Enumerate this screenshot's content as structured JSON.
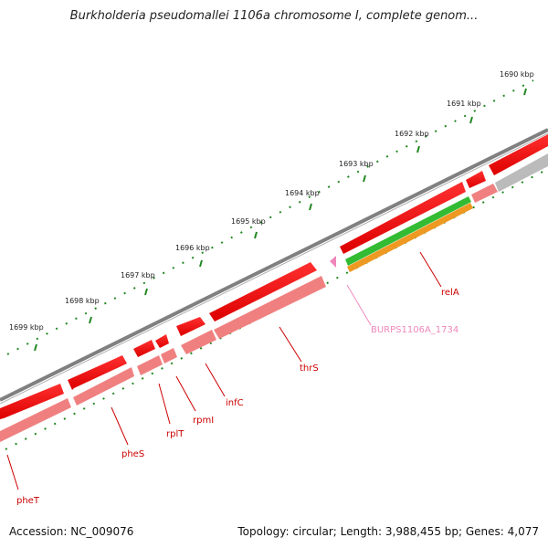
{
  "title": "Burkholderia pseudomallei 1106a chromosome I, complete genom...",
  "accession": "Accession: NC_009076",
  "topology": "Topology: circular; Length: 3,988,455 bp; Genes: 4,077",
  "colors": {
    "cds": "#ee0000",
    "cds_light": "#f08080",
    "gene_red": "#cc0000",
    "gene_pink": "#ee88bb",
    "backbone": "#808080",
    "rrna_green": "#33bb33",
    "rrna_orange": "#ee9922",
    "gray_feature": "#bbbbbb",
    "ticks": "#228822"
  },
  "kbp_labels": [
    "1690 kbp",
    "1691 kbp",
    "1692 kbp",
    "1693 kbp",
    "1694 kbp",
    "1695 kbp",
    "1696 kbp",
    "1697 kbp",
    "1698 kbp",
    "1699 kbp"
  ],
  "genes": [
    {
      "name": "pheT",
      "color": "red"
    },
    {
      "name": "pheS",
      "color": "red"
    },
    {
      "name": "rplT",
      "color": "red"
    },
    {
      "name": "rpmI",
      "color": "red"
    },
    {
      "name": "infC",
      "color": "red"
    },
    {
      "name": "thrS",
      "color": "red"
    },
    {
      "name": "BURPS1106A_1734",
      "color": "pink"
    },
    {
      "name": "relA",
      "color": "red"
    }
  ]
}
